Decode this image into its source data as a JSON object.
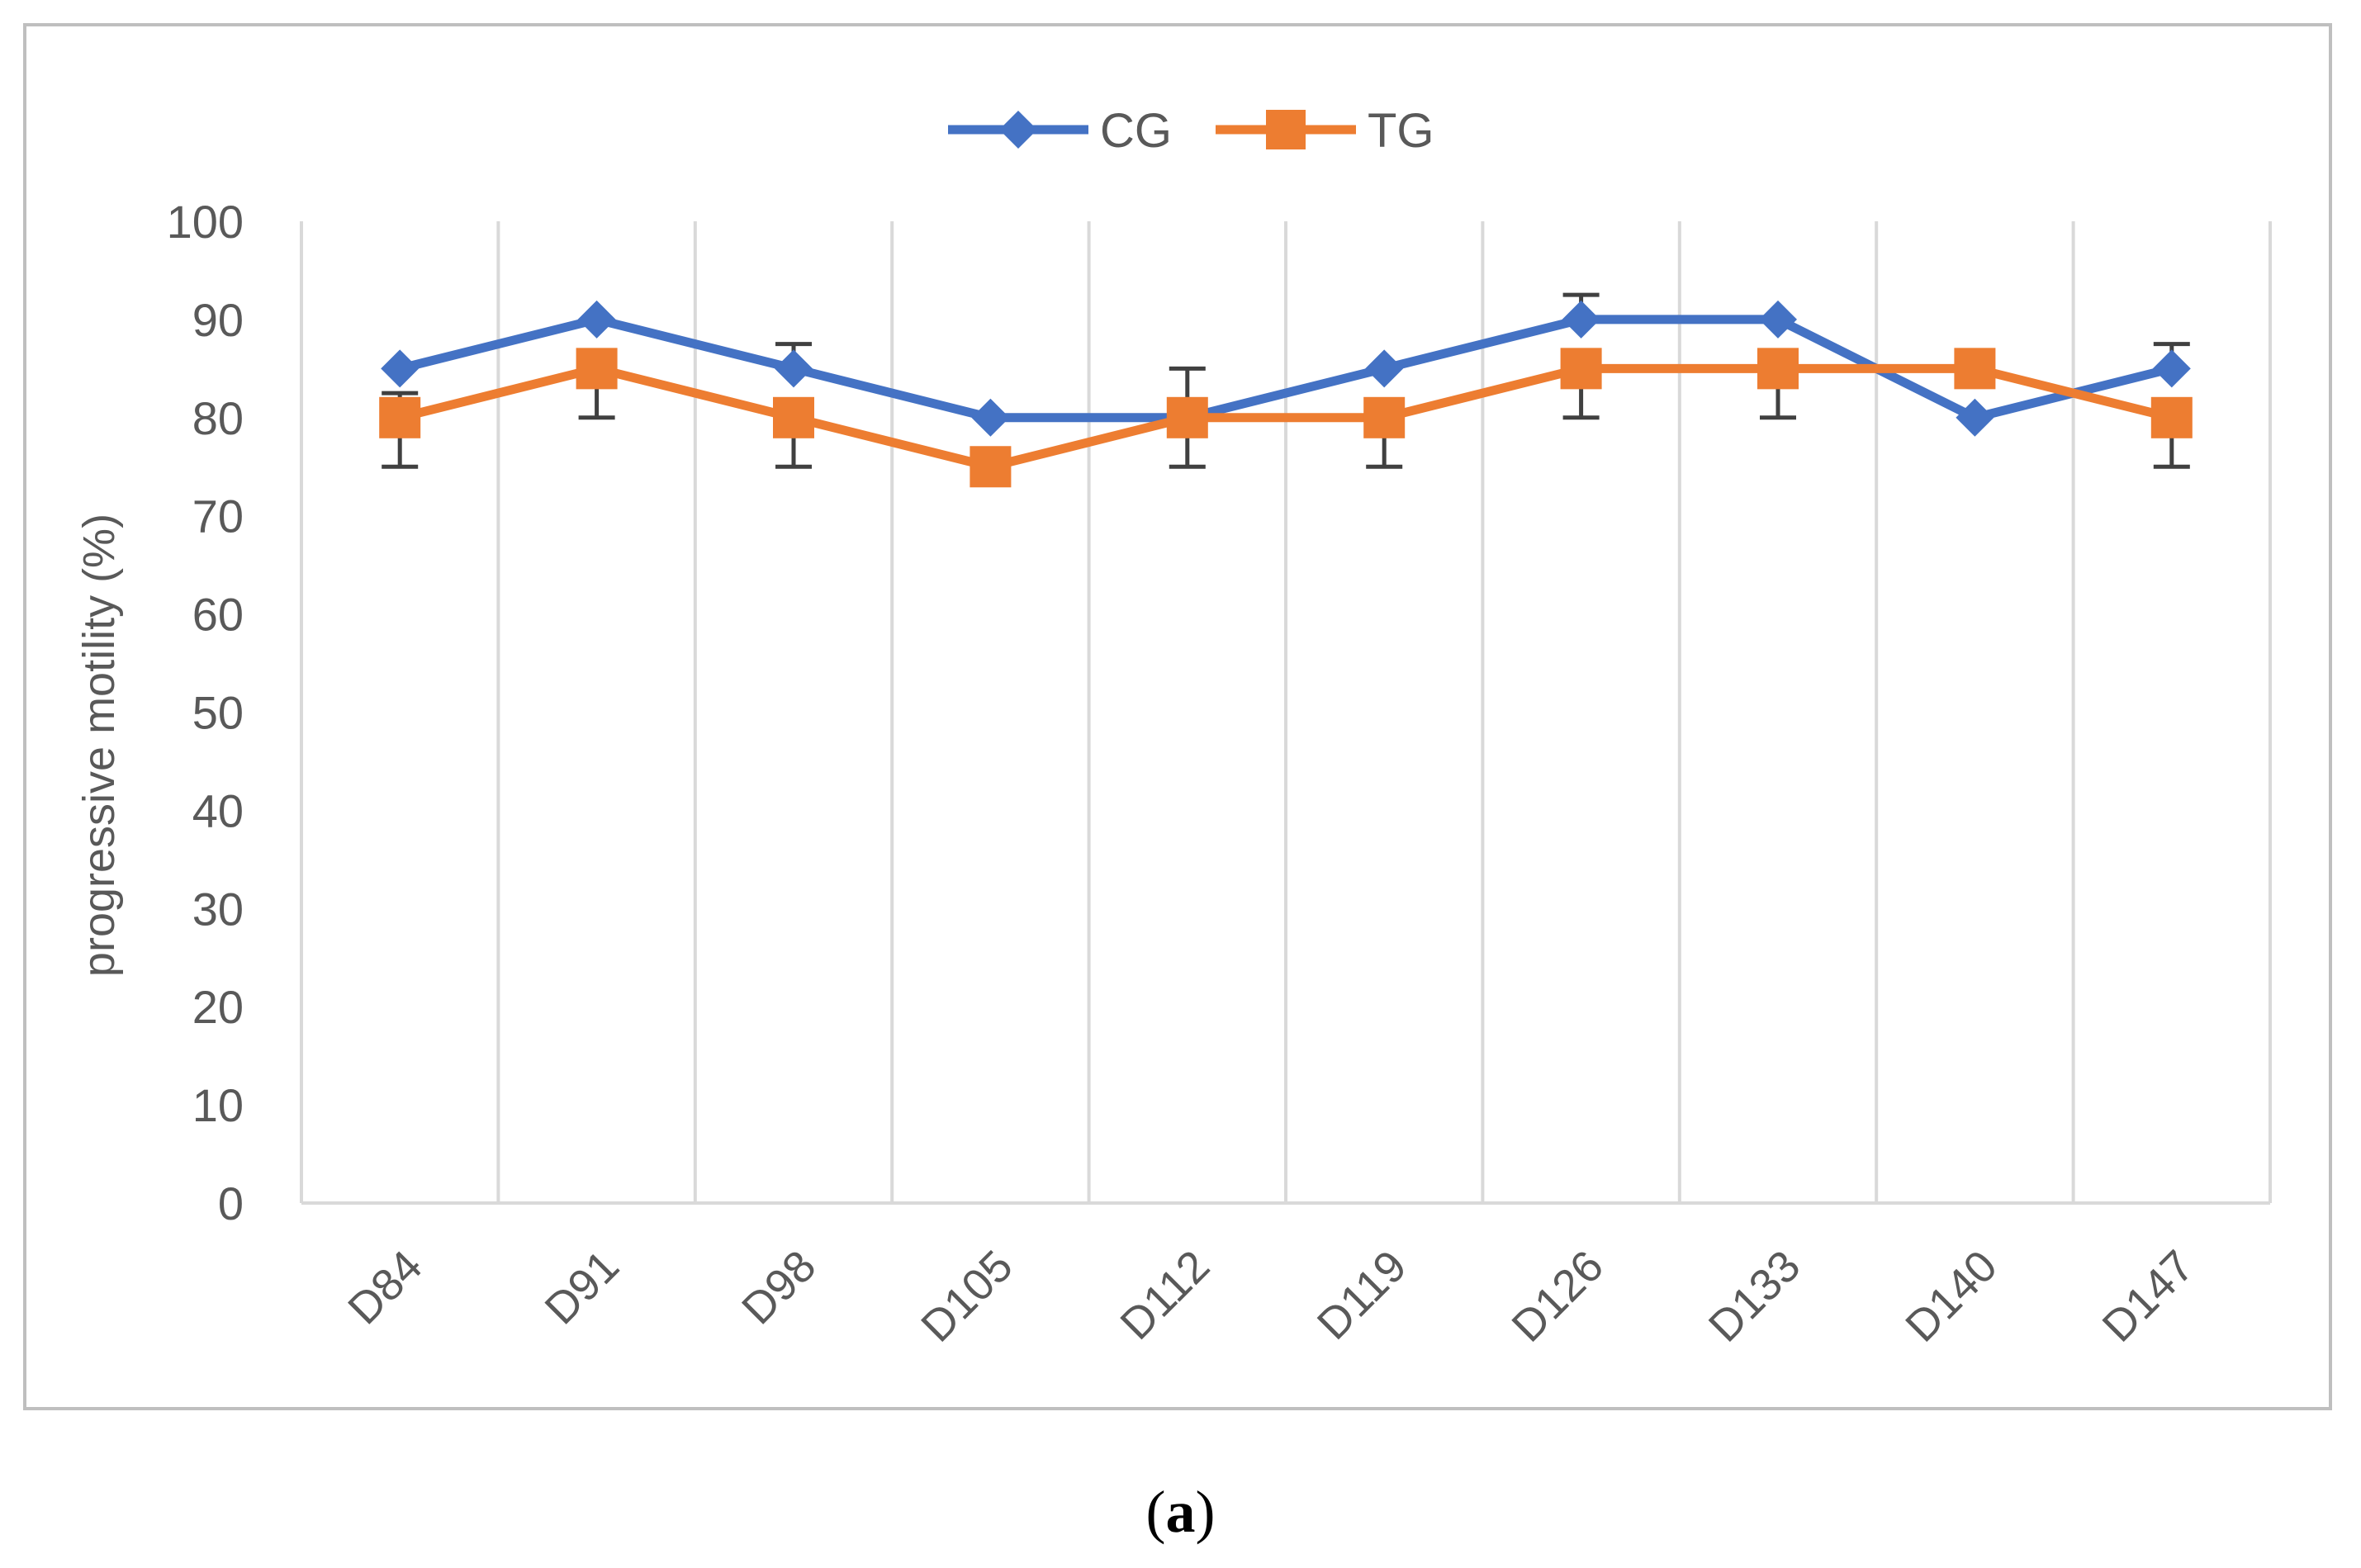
{
  "chart_data": {
    "type": "line",
    "title": "",
    "xlabel": "",
    "ylabel": "progressive motility (%)",
    "ylim": [
      0,
      100
    ],
    "yticks": [
      0,
      10,
      20,
      30,
      40,
      50,
      60,
      70,
      80,
      90,
      100
    ],
    "categories": [
      "D84",
      "D91",
      "D98",
      "D105",
      "D112",
      "D119",
      "D126",
      "D133",
      "D140",
      "D147"
    ],
    "grid": "vertical",
    "legend_position": "top-center",
    "series": [
      {
        "name": "CG",
        "color": "#4472c4",
        "marker": "diamond",
        "values": [
          85,
          90,
          85,
          80,
          80,
          85,
          90,
          90,
          80,
          85
        ],
        "error_plus": [
          0,
          0,
          2.5,
          0,
          5,
          0,
          2.5,
          0,
          0,
          2.5
        ]
      },
      {
        "name": "TG",
        "color": "#ed7d31",
        "marker": "square",
        "values": [
          80,
          85,
          80,
          75,
          80,
          80,
          85,
          85,
          85,
          80
        ],
        "error_minus": [
          5,
          5,
          5,
          0,
          5,
          5,
          5,
          5,
          0,
          5
        ],
        "error_plus": [
          2.5,
          0,
          0,
          0,
          0,
          0,
          0,
          0,
          0,
          0
        ]
      }
    ]
  },
  "caption": {
    "open": "(",
    "label": "a",
    "close": ")"
  }
}
